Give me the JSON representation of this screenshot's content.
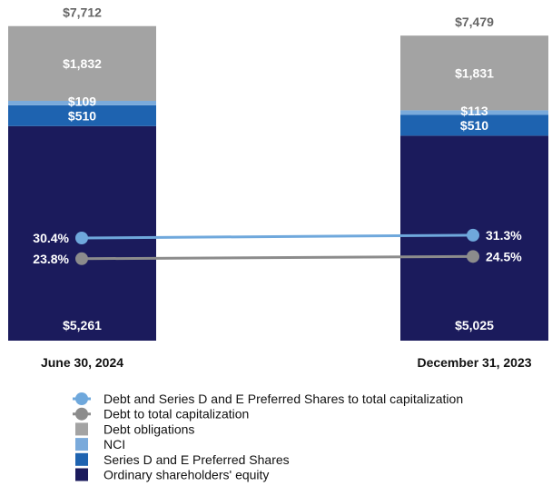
{
  "chart_data": {
    "type": "bar",
    "stacked": true,
    "categories": [
      "June 30, 2024",
      "December 31, 2023"
    ],
    "totals": [
      7712,
      7479
    ],
    "total_labels": [
      "$7,712",
      "$7,479"
    ],
    "series": [
      {
        "name": "Ordinary shareholders' equity",
        "values": [
          5261,
          5025
        ],
        "labels": [
          "$5,261",
          "$5,025"
        ],
        "color": "#1b1b5c"
      },
      {
        "name": "Series D and E Preferred Shares",
        "values": [
          510,
          510
        ],
        "labels": [
          "$510",
          "$510"
        ],
        "color": "#1e63b0"
      },
      {
        "name": "NCI",
        "values": [
          109,
          113
        ],
        "labels": [
          "$109",
          "$113"
        ],
        "color": "#7aaadb"
      },
      {
        "name": "Debt obligations",
        "values": [
          1832,
          1831
        ],
        "labels": [
          "$1,832",
          "$1,831"
        ],
        "color": "#a3a3a3"
      }
    ],
    "lines": [
      {
        "name": "Debt and Series D and E Preferred Shares to total capitalization",
        "values": [
          30.4,
          31.3
        ],
        "labels": [
          "30.4%",
          "31.3%"
        ],
        "color": "#6fa8dc"
      },
      {
        "name": "Debt to total capitalization",
        "values": [
          23.8,
          24.5
        ],
        "labels": [
          "23.8%",
          "24.5%"
        ],
        "color": "#8c8c8c"
      }
    ],
    "legend": [
      {
        "name": "Debt and Series D and E Preferred Shares to total capitalization",
        "kind": "line",
        "color": "#6fa8dc"
      },
      {
        "name": "Debt to total capitalization",
        "kind": "line",
        "color": "#8c8c8c"
      },
      {
        "name": "Debt obligations",
        "kind": "box",
        "color": "#a3a3a3"
      },
      {
        "name": "NCI",
        "kind": "box",
        "color": "#7aaadb"
      },
      {
        "name": "Series D and E Preferred Shares",
        "kind": "box",
        "color": "#1e63b0"
      },
      {
        "name": "Ordinary shareholders' equity",
        "kind": "box",
        "color": "#1b1b5c"
      }
    ],
    "legend_position": "bottom",
    "grid": false
  }
}
